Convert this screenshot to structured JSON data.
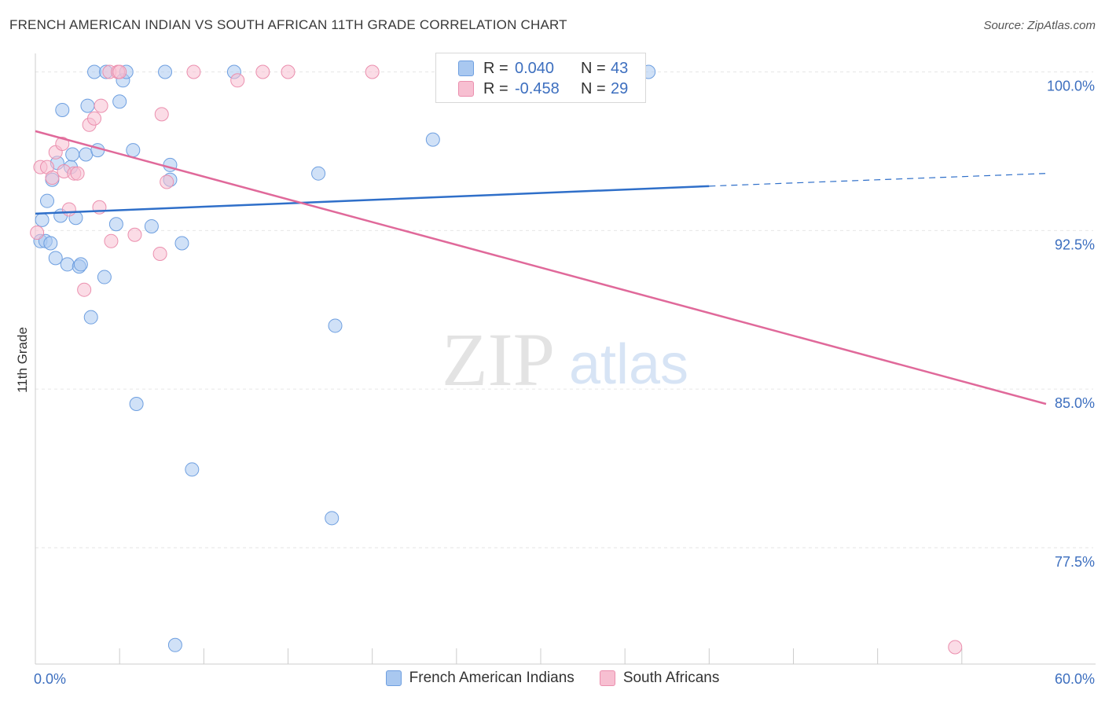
{
  "header": {
    "title": "FRENCH AMERICAN INDIAN VS SOUTH AFRICAN 11TH GRADE CORRELATION CHART",
    "source": "Source: ZipAtlas.com"
  },
  "watermark": {
    "zip": "ZIP",
    "atlas": "atlas"
  },
  "stats": [
    {
      "r_label": "R =",
      "r_value": "0.040",
      "n_label": "N =",
      "n_value": "43",
      "color": "#a9c8f0",
      "border": "#6e9fe0"
    },
    {
      "r_label": "R =",
      "r_value": "-0.458",
      "n_label": "N =",
      "n_value": "29",
      "color": "#f7bfd1",
      "border": "#eb8fae"
    }
  ],
  "legend": [
    {
      "label": "French American Indians",
      "color": "#a9c8f0",
      "border": "#6e9fe0"
    },
    {
      "label": "South Africans",
      "color": "#f7bfd1",
      "border": "#eb8fae"
    }
  ],
  "chart_data": {
    "type": "scatter",
    "ylabel": "11th Grade",
    "xlim": [
      0,
      60
    ],
    "ylim": [
      72,
      100.8
    ],
    "x_tick_labels": [
      "0.0%",
      "60.0%"
    ],
    "y_ticks": [
      {
        "value": 100,
        "label": "100.0%"
      },
      {
        "value": 92.5,
        "label": "92.5%"
      },
      {
        "value": 85,
        "label": "85.0%"
      },
      {
        "value": 77.5,
        "label": "77.5%"
      }
    ],
    "grid": true,
    "series": [
      {
        "name": "French American Indians",
        "color": "#a9c8f0",
        "stroke": "#6e9fe0",
        "line_color": "#2f6fc9",
        "trend": {
          "x0": 0,
          "y0": 93.3,
          "x1": 40,
          "y1": 94.6,
          "x_dash_end": 60,
          "y_dash_end": 95.2
        },
        "points": [
          [
            0.4,
            93.0
          ],
          [
            0.3,
            92.0
          ],
          [
            0.6,
            92.0
          ],
          [
            0.7,
            93.9
          ],
          [
            0.9,
            91.9
          ],
          [
            1.0,
            94.9
          ],
          [
            1.2,
            91.2
          ],
          [
            1.3,
            95.7
          ],
          [
            1.5,
            93.2
          ],
          [
            1.6,
            98.2
          ],
          [
            1.9,
            90.9
          ],
          [
            2.1,
            95.5
          ],
          [
            2.2,
            96.1
          ],
          [
            2.4,
            93.1
          ],
          [
            2.6,
            90.8
          ],
          [
            2.7,
            90.9
          ],
          [
            3.0,
            96.1
          ],
          [
            3.1,
            98.4
          ],
          [
            3.3,
            88.4
          ],
          [
            3.5,
            100.0
          ],
          [
            3.7,
            96.3
          ],
          [
            4.1,
            90.3
          ],
          [
            4.2,
            100.0
          ],
          [
            4.8,
            92.8
          ],
          [
            5.0,
            98.6
          ],
          [
            5.2,
            99.6
          ],
          [
            5.4,
            100.0
          ],
          [
            5.8,
            96.3
          ],
          [
            6.0,
            84.3
          ],
          [
            6.9,
            92.7
          ],
          [
            7.7,
            100.0
          ],
          [
            8.0,
            95.6
          ],
          [
            8.0,
            94.9
          ],
          [
            8.3,
            72.9
          ],
          [
            8.7,
            91.9
          ],
          [
            9.3,
            81.2
          ],
          [
            11.8,
            100.0
          ],
          [
            16.8,
            95.2
          ],
          [
            17.6,
            78.9
          ],
          [
            17.8,
            88.0
          ],
          [
            23.6,
            96.8
          ],
          [
            24.5,
            100.0
          ],
          [
            36.4,
            100.0
          ]
        ]
      },
      {
        "name": "South Africans",
        "color": "#f7bfd1",
        "stroke": "#eb8fae",
        "line_color": "#e0699a",
        "trend": {
          "x0": 0,
          "y0": 97.2,
          "x1": 60,
          "y1": 84.3
        },
        "points": [
          [
            0.1,
            92.4
          ],
          [
            0.3,
            95.5
          ],
          [
            0.7,
            95.5
          ],
          [
            1.0,
            95.0
          ],
          [
            1.2,
            96.2
          ],
          [
            1.6,
            96.6
          ],
          [
            1.7,
            95.3
          ],
          [
            2.0,
            93.5
          ],
          [
            2.3,
            95.2
          ],
          [
            2.5,
            95.2
          ],
          [
            2.9,
            89.7
          ],
          [
            3.2,
            97.5
          ],
          [
            3.5,
            97.8
          ],
          [
            3.8,
            93.6
          ],
          [
            3.9,
            98.4
          ],
          [
            4.4,
            100.0
          ],
          [
            4.5,
            92.0
          ],
          [
            4.9,
            100.0
          ],
          [
            5.0,
            100.0
          ],
          [
            5.9,
            92.3
          ],
          [
            7.4,
            91.4
          ],
          [
            7.5,
            98.0
          ],
          [
            7.8,
            94.8
          ],
          [
            9.4,
            100.0
          ],
          [
            12.0,
            99.6
          ],
          [
            13.5,
            100.0
          ],
          [
            15.0,
            100.0
          ],
          [
            20.0,
            100.0
          ],
          [
            54.6,
            72.8
          ]
        ]
      }
    ]
  }
}
